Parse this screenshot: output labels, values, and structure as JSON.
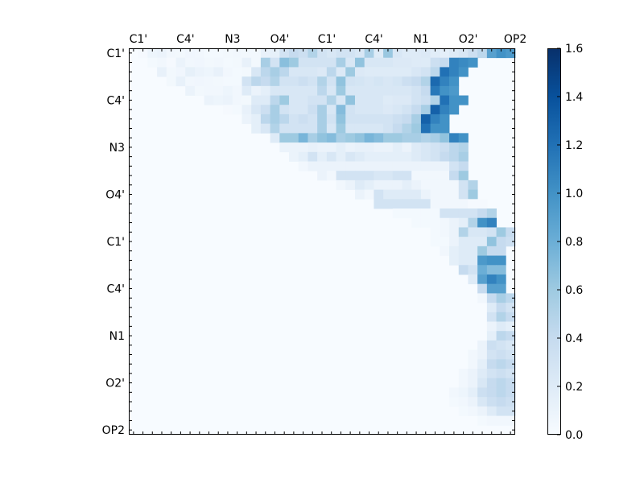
{
  "chart_data": {
    "type": "heatmap",
    "title": "",
    "xlabel": "",
    "ylabel": "",
    "x_tick_labels": [
      "C1'",
      "C4'",
      "N3",
      "O4'",
      "C1'",
      "C4'",
      "N1",
      "O2'",
      "OP2"
    ],
    "y_tick_labels": [
      "C1'",
      "C4'",
      "N3",
      "O4'",
      "C1'",
      "C4'",
      "N1",
      "O2'",
      "OP2"
    ],
    "grid_size": 41,
    "colormap": "Blues",
    "value_range": [
      0.0,
      1.6
    ],
    "colorbar": {
      "ticks": [
        0.0,
        0.2,
        0.4,
        0.6,
        0.8,
        1.0,
        1.2,
        1.4,
        1.6
      ],
      "tick_labels": [
        "0.0",
        "0.2",
        "0.4",
        "0.6",
        "0.8",
        "1.0",
        "1.2",
        "1.4",
        "1.6"
      ]
    },
    "rows": [
      {
        "row": 0,
        "start": 1,
        "values": [
          0.02,
          0.08,
          0.1,
          0.05,
          0.04,
          0.06,
          0.05,
          0.03,
          0.03,
          0.04,
          0.05,
          0.04,
          0.04,
          0.12,
          0.14,
          0.3,
          0.4,
          0.35,
          0.5,
          0.3,
          0.25,
          0.3,
          0.3,
          0.25,
          0.55,
          0.2,
          0.62,
          0.25,
          0.2,
          0.2,
          0.22,
          0.18,
          0.15,
          0.2,
          0.25,
          0.35,
          0.45,
          0.9,
          1.0,
          0.95
        ]
      },
      {
        "row": 1,
        "start": 2,
        "values": [
          0.03,
          0.05,
          0.02,
          0.1,
          0.05,
          0.06,
          0.04,
          0.05,
          0.03,
          0.04,
          0.12,
          0.04,
          0.55,
          0.3,
          0.68,
          0.6,
          0.3,
          0.3,
          0.3,
          0.3,
          0.55,
          0.25,
          0.65,
          0.25,
          0.25,
          0.25,
          0.22,
          0.22,
          0.2,
          0.2,
          0.35,
          0.4,
          1.1,
          1.05,
          1.0
        ]
      },
      {
        "row": 2,
        "start": 3,
        "values": [
          0.12,
          0.04,
          0.06,
          0.14,
          0.1,
          0.08,
          0.12,
          0.05,
          0.03,
          0.04,
          0.25,
          0.45,
          0.55,
          0.45,
          0.25,
          0.25,
          0.25,
          0.22,
          0.45,
          0.22,
          0.6,
          0.22,
          0.2,
          0.2,
          0.2,
          0.2,
          0.2,
          0.25,
          0.3,
          0.45,
          1.2,
          1.1,
          1.0
        ]
      },
      {
        "row": 3,
        "start": 4,
        "values": [
          0.04,
          0.12,
          0.05,
          0.06,
          0.05,
          0.04,
          0.03,
          0.03,
          0.3,
          0.45,
          0.4,
          0.5,
          0.3,
          0.3,
          0.35,
          0.3,
          0.5,
          0.3,
          0.65,
          0.3,
          0.28,
          0.25,
          0.28,
          0.25,
          0.28,
          0.35,
          0.4,
          0.5,
          1.25,
          1.1,
          1.0
        ]
      },
      {
        "row": 4,
        "start": 6,
        "values": [
          0.1,
          0.04,
          0.05,
          0.05,
          0.08,
          0.05,
          0.2,
          0.1,
          0.15,
          0.25,
          0.25,
          0.25,
          0.25,
          0.25,
          0.45,
          0.25,
          0.6,
          0.25,
          0.25,
          0.25,
          0.25,
          0.25,
          0.25,
          0.25,
          0.3,
          0.4,
          1.15,
          1.0,
          0.95
        ]
      },
      {
        "row": 5,
        "start": 8,
        "values": [
          0.1,
          0.08,
          0.1,
          0.05,
          0.04,
          0.2,
          0.2,
          0.45,
          0.6,
          0.25,
          0.25,
          0.3,
          0.3,
          0.5,
          0.25,
          0.65,
          0.25,
          0.25,
          0.25,
          0.2,
          0.22,
          0.22,
          0.3,
          0.35,
          0.5,
          1.2,
          1.0,
          1.0
        ]
      },
      {
        "row": 6,
        "start": 10,
        "values": [
          0.02,
          0.03,
          0.12,
          0.25,
          0.35,
          0.55,
          0.3,
          0.25,
          0.25,
          0.35,
          0.55,
          0.25,
          0.7,
          0.3,
          0.25,
          0.25,
          0.25,
          0.22,
          0.25,
          0.3,
          0.4,
          0.55,
          1.3,
          1.1,
          1.0
        ]
      },
      {
        "row": 7,
        "start": 12,
        "values": [
          0.1,
          0.15,
          0.45,
          0.55,
          0.45,
          0.3,
          0.35,
          0.3,
          0.55,
          0.3,
          0.65,
          0.3,
          0.3,
          0.3,
          0.3,
          0.3,
          0.35,
          0.4,
          0.55,
          1.3,
          1.1,
          1.0
        ]
      },
      {
        "row": 8,
        "start": 13,
        "values": [
          0.15,
          0.25,
          0.5,
          0.3,
          0.3,
          0.3,
          0.3,
          0.55,
          0.25,
          0.6,
          0.25,
          0.25,
          0.25,
          0.25,
          0.3,
          0.4,
          0.5,
          0.6,
          1.2,
          1.0,
          1.0
        ]
      },
      {
        "row": 9,
        "start": 15,
        "values": [
          0.2,
          0.6,
          0.6,
          0.75,
          0.55,
          0.65,
          0.7,
          0.55,
          0.6,
          0.65,
          0.75,
          0.7,
          0.6,
          0.6,
          0.55,
          0.55,
          0.5,
          0.55,
          0.65,
          1.1,
          1.0
        ]
      },
      {
        "row": 10,
        "start": 16,
        "values": [
          0.1,
          0.1,
          0.1,
          0.12,
          0.1,
          0.1,
          0.15,
          0.1,
          0.12,
          0.12,
          0.1,
          0.1,
          0.15,
          0.1,
          0.2,
          0.25,
          0.3,
          0.35,
          0.45,
          0.5
        ]
      },
      {
        "row": 11,
        "start": 17,
        "values": [
          0.1,
          0.15,
          0.3,
          0.15,
          0.25,
          0.15,
          0.25,
          0.2,
          0.15,
          0.15,
          0.15,
          0.15,
          0.15,
          0.2,
          0.25,
          0.3,
          0.4,
          0.45,
          0.55
        ]
      },
      {
        "row": 12,
        "start": 18,
        "values": [
          0.05,
          0.1,
          0.1,
          0.1,
          0.1,
          0.1,
          0.1,
          0.1,
          0.1,
          0.1,
          0.1,
          0.1,
          0.1,
          0.1,
          0.1,
          0.1,
          0.3,
          0.4
        ]
      },
      {
        "row": 13,
        "start": 20,
        "values": [
          0.1,
          0.05,
          0.3,
          0.3,
          0.3,
          0.3,
          0.25,
          0.25,
          0.3,
          0.3,
          0.05,
          0.05,
          0.05,
          0.05,
          0.4,
          0.6
        ]
      },
      {
        "row": 14,
        "start": 22,
        "values": [
          0.05,
          0.1,
          0.2,
          0.15,
          0.1,
          0.1,
          0.1,
          0.15,
          0.1,
          0.05,
          0.05,
          0.05,
          0.05,
          0.3,
          0.5
        ]
      },
      {
        "row": 15,
        "start": 24,
        "values": [
          0.1,
          0.05,
          0.3,
          0.2,
          0.2,
          0.2,
          0.2,
          0.1,
          0.05,
          0.05,
          0.05,
          0.3,
          0.6
        ]
      },
      {
        "row": 16,
        "start": 26,
        "values": [
          0.3,
          0.3,
          0.3,
          0.3,
          0.3,
          0.3,
          0.05,
          0.05,
          0.05,
          0.05,
          0.02,
          0.02
        ]
      },
      {
        "row": 17,
        "start": 28,
        "values": [
          0.03,
          0.03,
          0.03,
          0.03,
          0.03,
          0.3,
          0.3,
          0.3,
          0.3,
          0.4,
          0.5
        ]
      },
      {
        "row": 18,
        "start": 30,
        "values": [
          0.03,
          0.03,
          0.03,
          0.05,
          0.1,
          0.15,
          0.5,
          1.0,
          1.1
        ]
      },
      {
        "row": 19,
        "start": 32,
        "values": [
          0.03,
          0.05,
          0.1,
          0.5,
          0.25,
          0.25,
          0.3,
          0.6,
          0.4
        ]
      },
      {
        "row": 20,
        "start": 32,
        "values": [
          0.03,
          0.03,
          0.1,
          0.2,
          0.2,
          0.2,
          0.65,
          0.4,
          0.35
        ]
      },
      {
        "row": 21,
        "start": 33,
        "values": [
          0.05,
          0.15,
          0.2,
          0.2,
          0.6,
          0.4,
          0.4
        ]
      },
      {
        "row": 22,
        "start": 34,
        "values": [
          0.15,
          0.2,
          0.2,
          0.95,
          1.0,
          1.0
        ]
      },
      {
        "row": 23,
        "start": 35,
        "values": [
          0.4,
          0.3,
          0.8,
          0.7,
          0.7
        ]
      },
      {
        "row": 24,
        "start": 36,
        "values": [
          0.2,
          0.9,
          1.1,
          1.0
        ]
      },
      {
        "row": 25,
        "start": 37,
        "values": [
          0.4,
          0.9,
          0.9
        ]
      },
      {
        "row": 26,
        "start": 37,
        "values": [
          0.05,
          0.4,
          0.55,
          0.45
        ]
      },
      {
        "row": 27,
        "start": 38,
        "values": [
          0.2,
          0.4,
          0.3
        ]
      },
      {
        "row": 28,
        "start": 38,
        "values": [
          0.3,
          0.5,
          0.4
        ]
      },
      {
        "row": 29,
        "start": 38,
        "values": [
          0.1,
          0.2,
          0.15
        ]
      },
      {
        "row": 30,
        "start": 38,
        "values": [
          0.15,
          0.45,
          0.4
        ]
      },
      {
        "row": 31,
        "start": 37,
        "values": [
          0.1,
          0.35,
          0.3,
          0.25
        ]
      },
      {
        "row": 32,
        "start": 36,
        "values": [
          0.05,
          0.1,
          0.3,
          0.35,
          0.3
        ]
      },
      {
        "row": 33,
        "start": 36,
        "values": [
          0.05,
          0.15,
          0.4,
          0.45,
          0.4
        ]
      },
      {
        "row": 34,
        "start": 35,
        "values": [
          0.05,
          0.1,
          0.2,
          0.3,
          0.35,
          0.3
        ]
      },
      {
        "row": 35,
        "start": 35,
        "values": [
          0.05,
          0.1,
          0.25,
          0.4,
          0.45,
          0.4
        ]
      },
      {
        "row": 36,
        "start": 34,
        "values": [
          0.05,
          0.08,
          0.15,
          0.35,
          0.4,
          0.45,
          0.4
        ]
      },
      {
        "row": 37,
        "start": 34,
        "values": [
          0.03,
          0.05,
          0.1,
          0.25,
          0.35,
          0.4,
          0.35
        ]
      },
      {
        "row": 38,
        "start": 35,
        "values": [
          0.03,
          0.05,
          0.1,
          0.2,
          0.3,
          0.3
        ]
      },
      {
        "row": 39,
        "start": 37,
        "values": [
          0.03,
          0.05,
          0.05,
          0.05
        ]
      }
    ]
  }
}
